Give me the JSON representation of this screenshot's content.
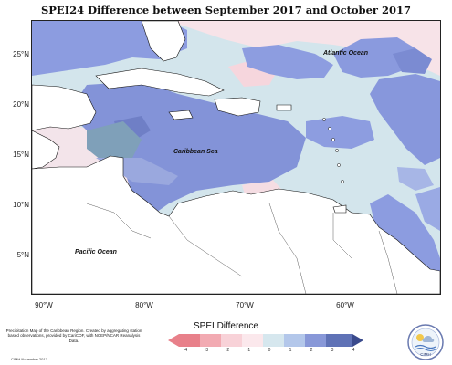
{
  "title": "SPEI24 Difference between September 2017 and October 2017",
  "map": {
    "latitude_labels": [
      "25°N",
      "20°N",
      "15°N",
      "10°N",
      "5°N"
    ],
    "longitude_labels": [
      "90°W",
      "80°W",
      "70°W",
      "60°W"
    ],
    "labels": {
      "atlantic": "Atlantic Ocean",
      "caribbean": "Caribbean Sea",
      "pacific": "Pacific Ocean"
    }
  },
  "legend": {
    "title": "SPEI Difference",
    "ticks": [
      "-4",
      "-3",
      "-2",
      "-1",
      "0",
      "1",
      "2",
      "3",
      "4"
    ],
    "colors": [
      "#e8808a",
      "#f2aab2",
      "#f8d2d8",
      "#fbe8ec",
      "#d6e7ee",
      "#b3c7ea",
      "#8898d8",
      "#5f72b6",
      "#3a4a8c"
    ]
  },
  "credits": {
    "text": "Precipitation Map of the Caribbean Region. Created by aggregating station based observations, provided by CariCOF, with NCEP/NCAR Reanalysis Data.",
    "date": "CIMH November 2017"
  },
  "logo": {
    "label": "CIMH"
  }
}
